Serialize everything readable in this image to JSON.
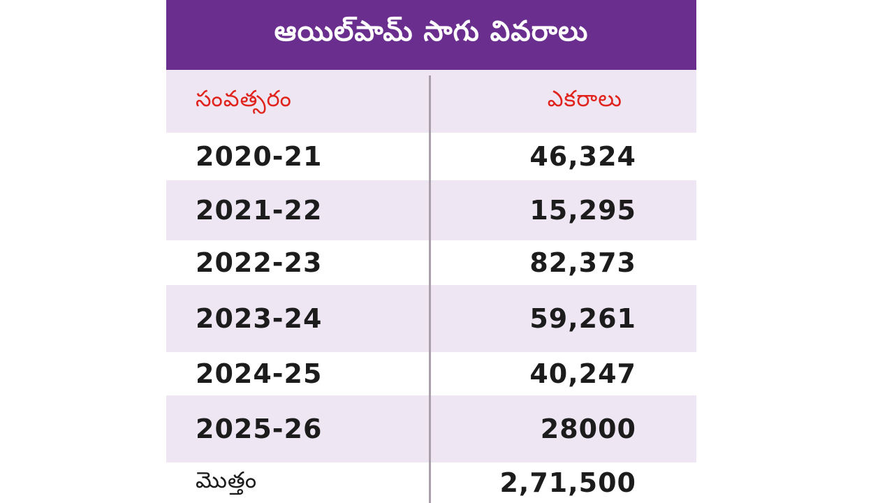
{
  "chart_data": {
    "type": "table",
    "title": "ఆయిల్‌పామ్‌ సాగు వివరాలు",
    "columns": [
      "సంవత్సరం",
      "ఎకరాలు"
    ],
    "rows": [
      {
        "year": "2020-21",
        "acres": "46,324"
      },
      {
        "year": "2021-22",
        "acres": "15,295"
      },
      {
        "year": "2022-23",
        "acres": "82,373"
      },
      {
        "year": "2023-24",
        "acres": "59,261"
      },
      {
        "year": "2024-25",
        "acres": "40,247"
      },
      {
        "year": "2025-26",
        "acres": "28000"
      }
    ],
    "total": {
      "label": "మొత్తం",
      "acres": "2,71,500"
    }
  },
  "colors": {
    "title_bg": "#6a2e8e",
    "header_text": "#e0231c",
    "row_shade": "#efe6f3",
    "body_text": "#1c1c1c"
  }
}
